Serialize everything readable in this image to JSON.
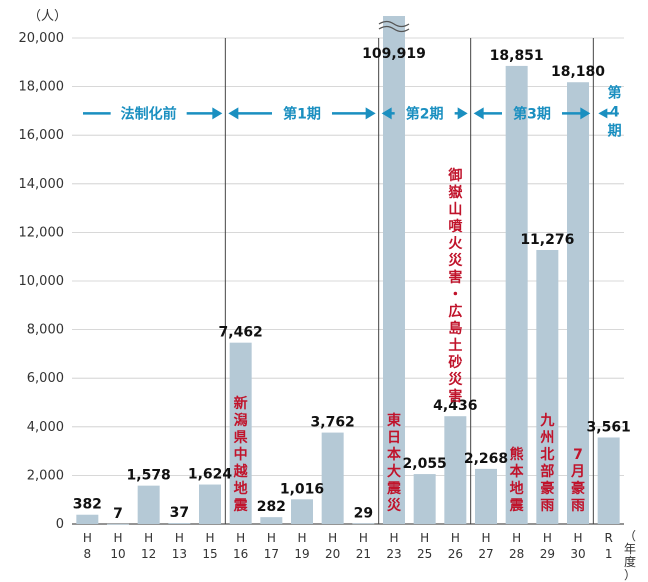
{
  "chart_data": {
    "type": "bar",
    "unit_label": "（人）",
    "x_unit_label": "（年度）",
    "ylim": [
      0,
      20000
    ],
    "yticks": [
      "0",
      "2,000",
      "4,000",
      "6,000",
      "8,000",
      "10,000",
      "12,000",
      "14,000",
      "16,000",
      "18,000",
      "20,000"
    ],
    "categories": [
      {
        "era": "H",
        "year": "8"
      },
      {
        "era": "H",
        "year": "10"
      },
      {
        "era": "H",
        "year": "12"
      },
      {
        "era": "H",
        "year": "13"
      },
      {
        "era": "H",
        "year": "15"
      },
      {
        "era": "H",
        "year": "16"
      },
      {
        "era": "H",
        "year": "17"
      },
      {
        "era": "H",
        "year": "19"
      },
      {
        "era": "H",
        "year": "20"
      },
      {
        "era": "H",
        "year": "21"
      },
      {
        "era": "H",
        "year": "23"
      },
      {
        "era": "H",
        "year": "25"
      },
      {
        "era": "H",
        "year": "26"
      },
      {
        "era": "H",
        "year": "27"
      },
      {
        "era": "H",
        "year": "28"
      },
      {
        "era": "H",
        "year": "29"
      },
      {
        "era": "H",
        "year": "30"
      },
      {
        "era": "R",
        "year": "1"
      }
    ],
    "values": [
      382,
      7,
      1578,
      37,
      1624,
      7462,
      282,
      1016,
      3762,
      29,
      109919,
      2055,
      4436,
      2268,
      18851,
      11276,
      18180,
      3561
    ],
    "value_labels": [
      "382",
      "7",
      "1,578",
      "37",
      "1,624",
      "7,462",
      "282",
      "1,016",
      "3,762",
      "29",
      "109,919",
      "2,055",
      "4,436",
      "2,268",
      "18,851",
      "11,276",
      "18,180",
      "3,561"
    ],
    "broken_bars": [
      10
    ],
    "periods": [
      {
        "label": "法制化前",
        "from": 0,
        "to": 4
      },
      {
        "label": "第1期",
        "from": 5,
        "to": 9
      },
      {
        "label": "第2期",
        "from": 10,
        "to": 12
      },
      {
        "label": "第3期",
        "from": 13,
        "to": 16
      },
      {
        "label": "第4期",
        "from": 17,
        "to": 17
      }
    ],
    "events": [
      {
        "bar": 5,
        "text": "新潟県中越地震"
      },
      {
        "bar": 10,
        "text": "東日本大震災"
      },
      {
        "bar": 12,
        "text": "御嶽山噴火災害・広島土砂災害"
      },
      {
        "bar": 14,
        "text": "熊本地震"
      },
      {
        "bar": 15,
        "text": "九州北部豪雨"
      },
      {
        "bar": 16,
        "text": "7月豪雨"
      }
    ],
    "grid": true,
    "bar_color": "#b5c9d6",
    "period_color": "#1a8fc0",
    "event_color": "#c0132b"
  }
}
